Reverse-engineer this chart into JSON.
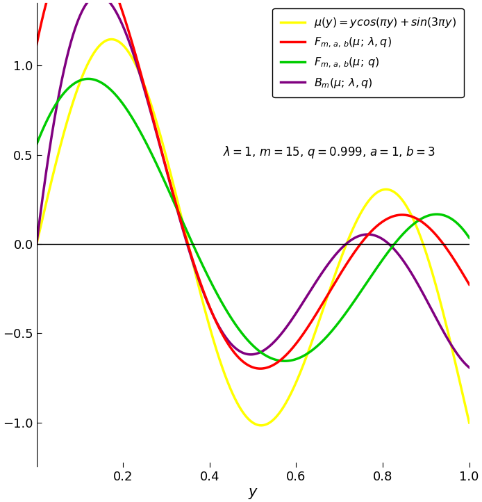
{
  "title": "",
  "xlabel": "y",
  "xlim": [
    0,
    1
  ],
  "ylim": [
    -1.25,
    1.35
  ],
  "lambda_": 1,
  "m": 15,
  "q": 0.999,
  "a": 1,
  "b": 3,
  "colors": {
    "mu": "#ffff00",
    "F_lambda": "#ff0000",
    "F_q": "#00cc00",
    "B_lambda": "#800080"
  },
  "line_widths": {
    "mu": 2.5,
    "F_lambda": 2.5,
    "F_q": 2.5,
    "B_lambda": 2.5
  },
  "legend_labels": {
    "mu": "$\\mu(y)=ycos(\\pi y)+sin(3\\pi y)$",
    "F_lambda": "$F_{m,\\, a,\\, b}(\\mu;\\, \\lambda, q)$",
    "F_q": "$F_{m,\\, a,\\, b}(\\mu;\\, q)$",
    "B_lambda": "$B_{m}(\\mu;\\, \\lambda, q)$"
  },
  "annotation": "$\\lambda=1,\\, m=15,\\, q=0.999,\\, a=1,\\, b=3$",
  "yticks": [
    -1.0,
    -0.5,
    0,
    0.5,
    1.0
  ],
  "xticks": [
    0.2,
    0.4,
    0.6,
    0.8,
    1.0
  ],
  "background_color": "#ffffff"
}
